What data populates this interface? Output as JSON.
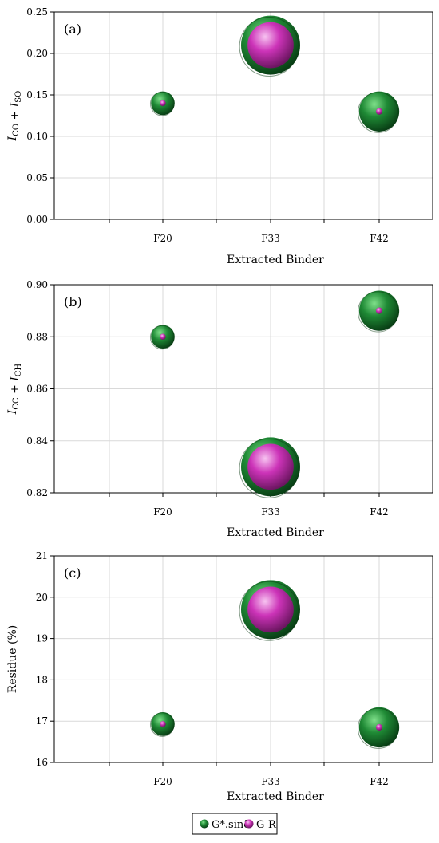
{
  "chart_data": [
    {
      "type": "scatter",
      "panel_label": "(a)",
      "categories": [
        "F20",
        "F33",
        "F42"
      ],
      "xlabel": "Extracted Binder",
      "ylabel": {
        "main1": "I",
        "sub1": "CO",
        "plus": " + ",
        "main2": "I",
        "sub2": "SO"
      },
      "ylim": [
        0,
        0.25
      ],
      "yticks": [
        0.0,
        0.05,
        0.1,
        0.15,
        0.2,
        0.25
      ],
      "ytick_decimals": 2,
      "grid": true,
      "series": [
        {
          "name": "G*.sinδ",
          "values": [
            0.14,
            0.21,
            0.13
          ],
          "bubble_size": [
            0.4,
            1.0,
            0.68
          ]
        },
        {
          "name": "G-R",
          "values": [
            0.14,
            0.21,
            0.13
          ],
          "bubble_size": [
            0.1,
            0.78,
            0.11
          ]
        }
      ]
    },
    {
      "type": "scatter",
      "panel_label": "(b)",
      "categories": [
        "F20",
        "F33",
        "F42"
      ],
      "xlabel": "Extracted Binder",
      "ylabel": {
        "main1": "I",
        "sub1": "CC",
        "plus": " + ",
        "main2": "I",
        "sub2": "CH"
      },
      "ylim": [
        0.82,
        0.9
      ],
      "yticks": [
        0.82,
        0.84,
        0.86,
        0.88,
        0.9
      ],
      "ytick_decimals": 2,
      "grid": true,
      "series": [
        {
          "name": "G*.sinδ",
          "values": [
            0.88,
            0.83,
            0.89
          ],
          "bubble_size": [
            0.4,
            1.0,
            0.68
          ]
        },
        {
          "name": "G-R",
          "values": [
            0.88,
            0.83,
            0.89
          ],
          "bubble_size": [
            0.1,
            0.78,
            0.11
          ]
        }
      ]
    },
    {
      "type": "scatter",
      "panel_label": "(c)",
      "categories": [
        "F20",
        "F33",
        "F42"
      ],
      "xlabel": "Extracted Binder",
      "ylabel": {
        "text": "Residue (%)"
      },
      "ylim": [
        16,
        21
      ],
      "yticks": [
        16,
        17,
        18,
        19,
        20,
        21
      ],
      "ytick_decimals": 0,
      "grid": true,
      "series": [
        {
          "name": "G*.sinδ",
          "values": [
            16.93,
            19.7,
            16.85
          ],
          "bubble_size": [
            0.4,
            1.0,
            0.68
          ]
        },
        {
          "name": "G-R",
          "values": [
            16.93,
            19.7,
            16.85
          ],
          "bubble_size": [
            0.1,
            0.78,
            0.11
          ]
        }
      ]
    }
  ],
  "legend": {
    "position": "bottom-center",
    "items": [
      {
        "label": "G*.sinδ",
        "color": "#1f7a33"
      },
      {
        "label": "G-R",
        "color": "#cc33b8"
      }
    ]
  },
  "colors": {
    "g_sin": "#1f7a33",
    "g_sin_light": "#5fd06a",
    "g_sin_dark": "#0b4a18",
    "gr": "#cc33b8",
    "gr_light": "#f3a6ec",
    "gr_dark": "#7a1a6e",
    "grid": "#d9d9d9"
  }
}
